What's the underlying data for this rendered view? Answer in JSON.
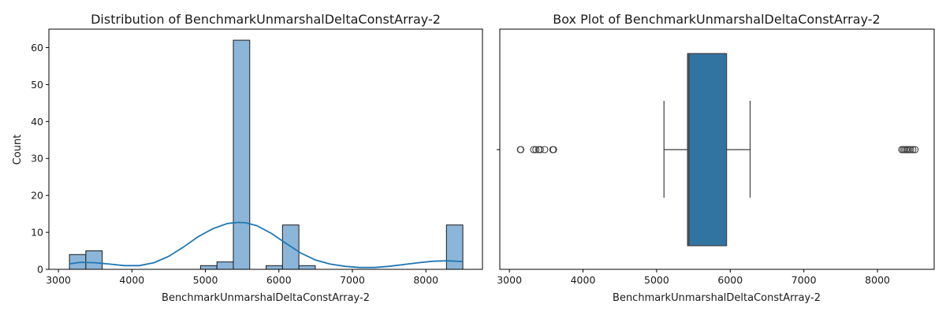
{
  "chart_data": [
    {
      "type": "bar",
      "subtype": "histogram-with-kde",
      "title": "Distribution of BenchmarkUnmarshalDeltaConstArray-2",
      "xlabel": "BenchmarkUnmarshalDeltaConstArray-2",
      "ylabel": "Count",
      "xlim": [
        2870,
        8770
      ],
      "ylim": [
        0,
        65
      ],
      "xticks": [
        3000,
        4000,
        5000,
        6000,
        7000,
        8000
      ],
      "yticks": [
        0,
        10,
        20,
        30,
        40,
        50,
        60
      ],
      "bin_width": 223,
      "bins": [
        {
          "x0": 3150,
          "count": 4
        },
        {
          "x0": 3373,
          "count": 5
        },
        {
          "x0": 4934,
          "count": 1
        },
        {
          "x0": 5157,
          "count": 2
        },
        {
          "x0": 5380,
          "count": 62
        },
        {
          "x0": 5826,
          "count": 1
        },
        {
          "x0": 6049,
          "count": 12
        },
        {
          "x0": 6272,
          "count": 1
        },
        {
          "x0": 8280,
          "count": 12
        }
      ],
      "kde": {
        "x": [
          3150,
          3300,
          3500,
          3700,
          3900,
          4100,
          4300,
          4500,
          4700,
          4900,
          5100,
          5300,
          5450,
          5550,
          5700,
          5900,
          6100,
          6300,
          6500,
          6700,
          6900,
          7100,
          7300,
          7500,
          7700,
          7900,
          8100,
          8300,
          8500
        ],
        "y": [
          1.5,
          1.9,
          1.8,
          1.4,
          1.0,
          1.0,
          1.8,
          3.5,
          6.0,
          8.8,
          11.0,
          12.4,
          12.7,
          12.6,
          11.8,
          9.7,
          7.0,
          4.4,
          2.5,
          1.4,
          0.8,
          0.5,
          0.5,
          0.8,
          1.3,
          1.8,
          2.2,
          2.3,
          2.1
        ]
      },
      "colors": {
        "bar_fill": "#8cb6d9",
        "bar_edge": "#1a1a1a",
        "kde_line": "#1f77b4"
      }
    },
    {
      "type": "box",
      "title": "Box Plot of BenchmarkUnmarshalDeltaConstArray-2",
      "xlabel": "BenchmarkUnmarshalDeltaConstArray-2",
      "xlim": [
        2870,
        8770
      ],
      "xticks": [
        3000,
        4000,
        5000,
        6000,
        7000,
        8000
      ],
      "box": {
        "whisker_low": 5100,
        "q1": 5420,
        "median": 5440,
        "q3": 5950,
        "whisker_high": 6270
      },
      "outliers": [
        3150,
        3155,
        3330,
        3360,
        3400,
        3420,
        3480,
        3590,
        3600,
        8330,
        8350,
        8370,
        8390,
        8410,
        8430,
        8450,
        8480,
        8510
      ],
      "colors": {
        "box_fill": "#3274a1",
        "line": "#3f3f3f"
      }
    }
  ]
}
